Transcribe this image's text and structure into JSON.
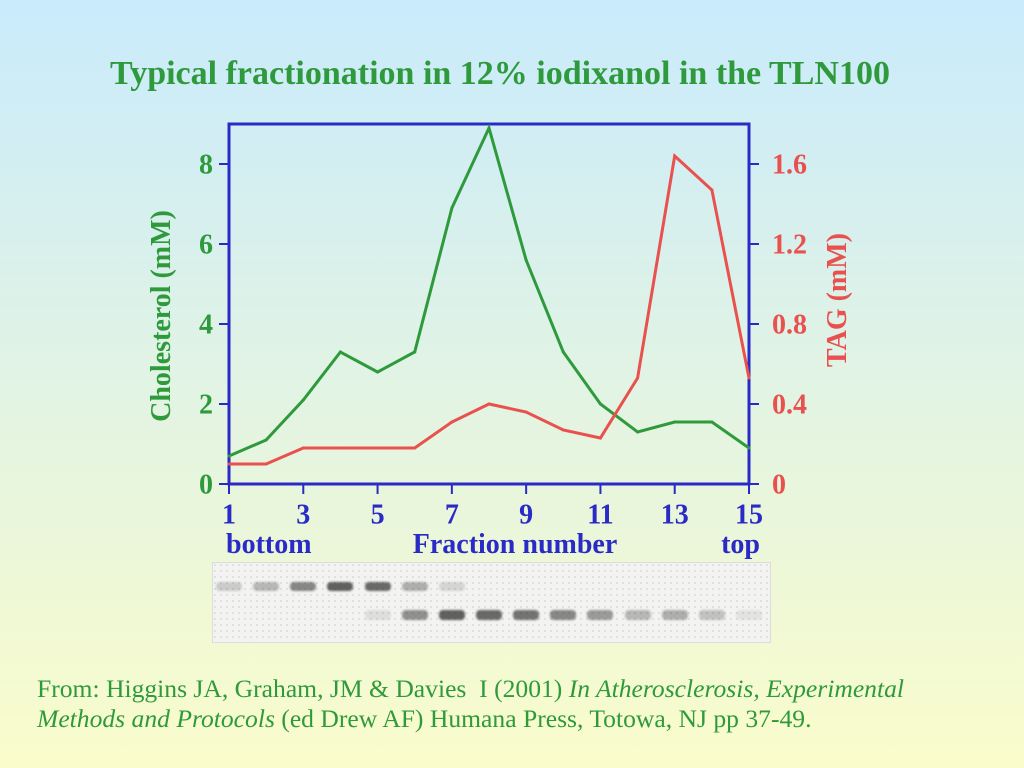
{
  "chart_data": {
    "type": "line",
    "title": "Typical fractionation in 12% iodixanol in the TLN100",
    "xlabel": "Fraction number",
    "x_end_labels": [
      "bottom",
      "top"
    ],
    "x": [
      1,
      2,
      3,
      4,
      5,
      6,
      7,
      8,
      9,
      10,
      11,
      12,
      13,
      14,
      15
    ],
    "xlim": [
      1,
      15
    ],
    "xticks": [
      1,
      3,
      5,
      7,
      9,
      11,
      13,
      15
    ],
    "ylabel": "Cholesterol (mM)",
    "ylim": [
      0,
      9
    ],
    "yticks": [
      0,
      2,
      4,
      6,
      8
    ],
    "y2label": "TAG (mM)",
    "y2lim": [
      0,
      1.8
    ],
    "y2ticks": [
      0,
      0.4,
      0.8,
      1.2,
      1.6
    ],
    "grid": false,
    "series": [
      {
        "y_axis": 1,
        "color": "#2e9a3c",
        "values": [
          0.7,
          1.1,
          2.1,
          3.3,
          2.8,
          3.3,
          6.9,
          8.9,
          5.6,
          3.3,
          2.0,
          1.3,
          1.55,
          1.55,
          0.9
        ]
      },
      {
        "y_axis": 2,
        "color": "#e9514f",
        "values": [
          0.1,
          0.1,
          0.18,
          0.18,
          0.18,
          0.18,
          0.31,
          0.4,
          0.36,
          0.27,
          0.23,
          0.53,
          1.64,
          1.47,
          0.53
        ]
      }
    ]
  },
  "gel": {
    "upper_band": [
      0.2,
      0.3,
      0.55,
      0.75,
      0.7,
      0.35,
      0.15,
      0,
      0,
      0,
      0,
      0,
      0,
      0,
      0
    ],
    "lower_band": [
      0,
      0,
      0,
      0,
      0.1,
      0.5,
      0.75,
      0.7,
      0.65,
      0.55,
      0.45,
      0.3,
      0.35,
      0.25,
      0.08
    ]
  },
  "citation": {
    "prefix": "From: Higgins JA, Graham, JM & Davies  I (2001) ",
    "book_title": "In Atherosclerosis, Experimental Methods and Protocols",
    "suffix": " (ed Drew AF) Humana Press, Totowa, NJ pp 37-49."
  },
  "colors": {
    "green": "#2e9a3c",
    "red": "#e9514f",
    "blue": "#2a2ac6",
    "background_top": "#c9ebfc",
    "background_bottom": "#fafccb"
  }
}
